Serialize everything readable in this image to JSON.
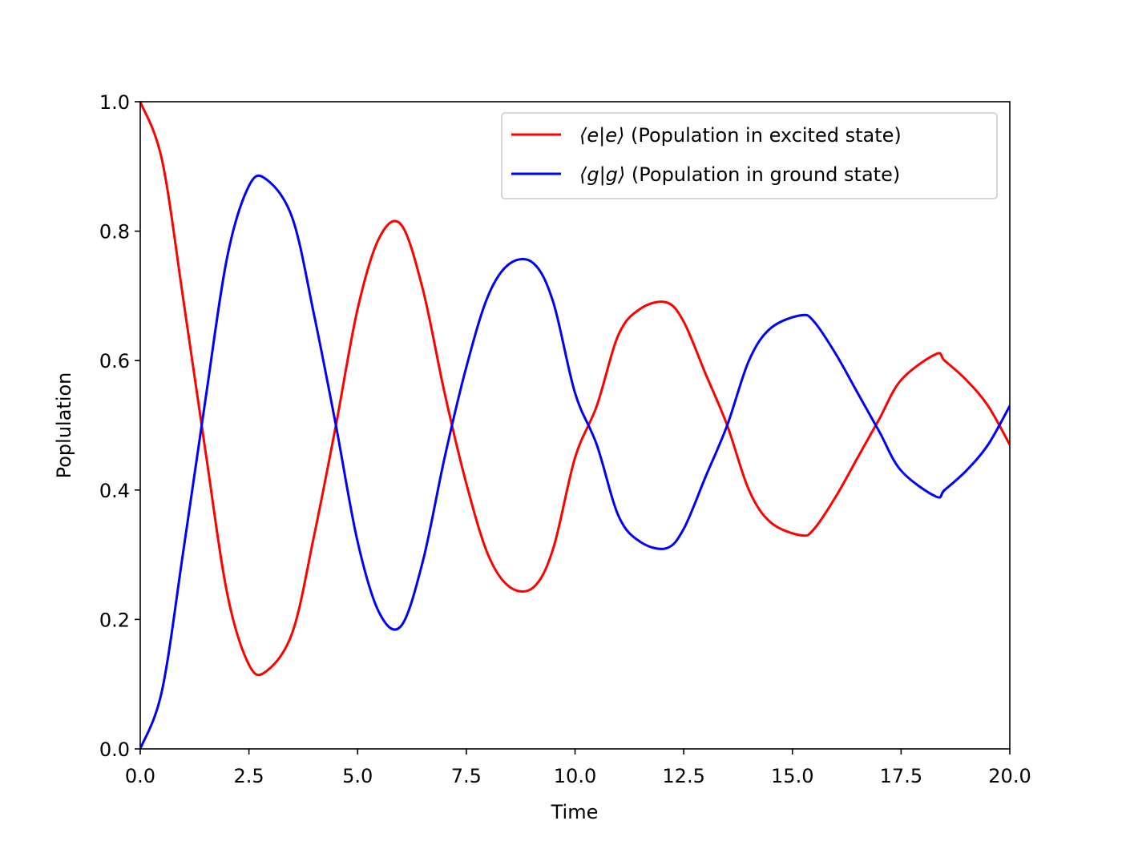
{
  "chart_data": {
    "type": "line",
    "title": "",
    "xlabel": "Time",
    "ylabel": "Poplulation",
    "xlim": [
      0,
      20
    ],
    "ylim": [
      0,
      1
    ],
    "grid": false,
    "legend_position": "top-right",
    "x_ticks": [
      0,
      2.5,
      5,
      7.5,
      10,
      12.5,
      15,
      17.5,
      20
    ],
    "x_tick_labels": [
      "0.0",
      "2.5",
      "5.0",
      "7.5",
      "10.0",
      "12.5",
      "15.0",
      "17.5",
      "20.0"
    ],
    "y_ticks": [
      0,
      0.2,
      0.4,
      0.6,
      0.8,
      1.0
    ],
    "y_tick_labels": [
      "0.0",
      "0.2",
      "0.4",
      "0.6",
      "0.8",
      "1.0"
    ],
    "series": [
      {
        "name": "⟨e|e⟩ (Population in excited state)",
        "legend_math": "⟨e|e⟩",
        "legend_text": " (Population in excited state)",
        "color": "#ff0000",
        "x": [
          0,
          0.5,
          1.0,
          1.5,
          2.0,
          2.5,
          2.9,
          3.5,
          4.0,
          4.5,
          5.0,
          5.5,
          6.0,
          6.5,
          7.0,
          7.5,
          8.0,
          8.5,
          9.05,
          9.5,
          10.0,
          10.5,
          11.0,
          11.5,
          12.1,
          12.5,
          13.0,
          13.5,
          14.0,
          14.5,
          15.2,
          15.5,
          16.0,
          16.5,
          17.0,
          17.5,
          18.3,
          18.5,
          19.0,
          19.5,
          20.0
        ],
        "y": [
          1.0,
          0.91,
          0.69,
          0.46,
          0.24,
          0.13,
          0.12,
          0.18,
          0.33,
          0.5,
          0.68,
          0.79,
          0.81,
          0.71,
          0.55,
          0.41,
          0.3,
          0.25,
          0.25,
          0.31,
          0.45,
          0.53,
          0.64,
          0.68,
          0.69,
          0.66,
          0.58,
          0.5,
          0.4,
          0.35,
          0.33,
          0.34,
          0.39,
          0.45,
          0.51,
          0.57,
          0.61,
          0.6,
          0.57,
          0.53,
          0.47
        ]
      },
      {
        "name": "⟨g|g⟩ (Population in ground state)",
        "legend_math": "⟨g|g⟩",
        "legend_text": " (Population in ground state)",
        "color": "#0000ff",
        "x": [
          0,
          0.5,
          1.0,
          1.5,
          2.0,
          2.5,
          2.9,
          3.5,
          4.0,
          4.5,
          5.0,
          5.5,
          6.0,
          6.5,
          7.0,
          7.5,
          8.0,
          8.5,
          9.05,
          9.5,
          10.0,
          10.5,
          11.0,
          11.5,
          12.1,
          12.5,
          13.0,
          13.5,
          14.0,
          14.5,
          15.2,
          15.5,
          16.0,
          16.5,
          17.0,
          17.5,
          18.3,
          18.5,
          19.0,
          19.5,
          20.0
        ],
        "y": [
          0.0,
          0.09,
          0.31,
          0.54,
          0.76,
          0.87,
          0.88,
          0.82,
          0.67,
          0.5,
          0.32,
          0.21,
          0.19,
          0.29,
          0.45,
          0.59,
          0.7,
          0.75,
          0.75,
          0.69,
          0.55,
          0.47,
          0.36,
          0.32,
          0.31,
          0.34,
          0.42,
          0.5,
          0.6,
          0.65,
          0.67,
          0.66,
          0.61,
          0.55,
          0.49,
          0.43,
          0.39,
          0.4,
          0.43,
          0.47,
          0.53
        ]
      }
    ]
  }
}
